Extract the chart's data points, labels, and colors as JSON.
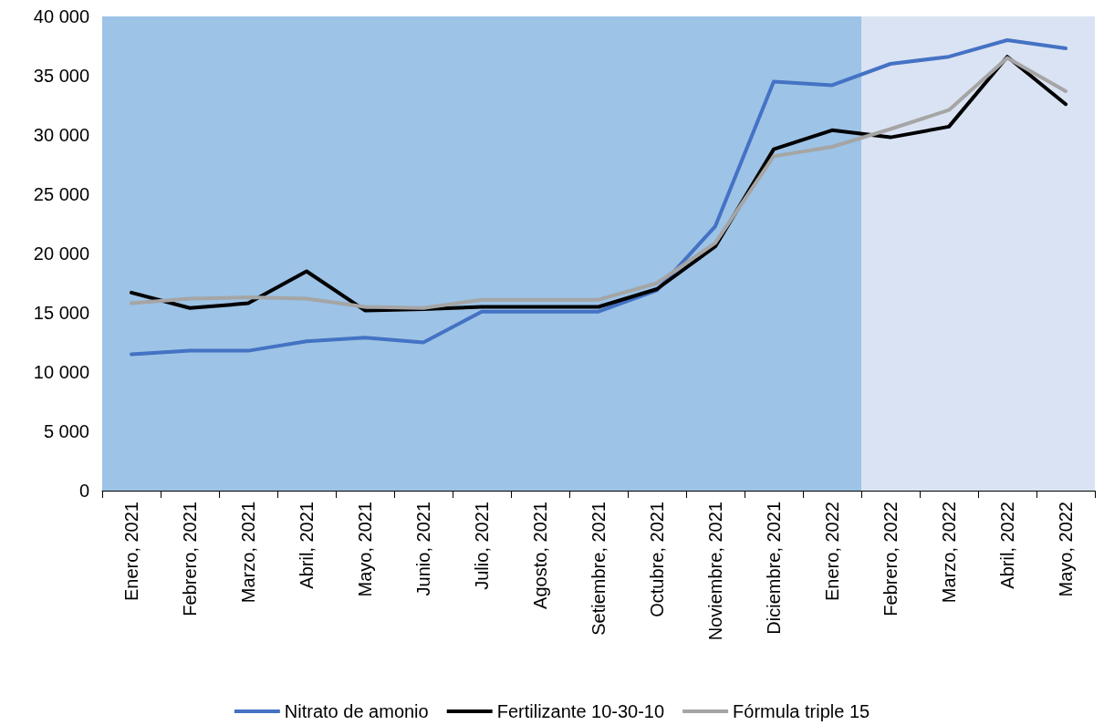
{
  "chart_data": {
    "type": "line",
    "categories": [
      "Enero, 2021",
      "Febrero, 2021",
      "Marzo, 2021",
      "Abril, 2021",
      "Mayo, 2021",
      "Junio, 2021",
      "Julio, 2021",
      "Agosto, 2021",
      "Setiembre, 2021",
      "Octubre, 2021",
      "Noviembre, 2021",
      "Diciembre, 2021",
      "Enero, 2022",
      "Febrero, 2022",
      "Marzo, 2022",
      "Abril, 2022",
      "Mayo, 2022"
    ],
    "series": [
      {
        "name": "Nitrato de amonio",
        "color": "#4472c4",
        "values": [
          11500,
          11800,
          11800,
          12600,
          12900,
          12500,
          15100,
          15100,
          15100,
          16900,
          22300,
          34500,
          34200,
          36000,
          36600,
          38000,
          37300
        ]
      },
      {
        "name": "Fertilizante 10-30-10",
        "color": "#000000",
        "values": [
          16700,
          15400,
          15800,
          18500,
          15200,
          15300,
          15500,
          15500,
          15500,
          17000,
          20600,
          28800,
          30400,
          29800,
          30700,
          36600,
          32600
        ]
      },
      {
        "name": "Fórmula triple 15",
        "color": "#a5a5a5",
        "values": [
          15800,
          16200,
          16300,
          16200,
          15500,
          15400,
          16100,
          16100,
          16100,
          17500,
          20900,
          28200,
          29000,
          30500,
          32100,
          36500,
          33700
        ]
      }
    ],
    "ylim": [
      0,
      40000
    ],
    "yticks": [
      {
        "value": 0,
        "label": "0"
      },
      {
        "value": 5000,
        "label": "5 000"
      },
      {
        "value": 10000,
        "label": "10 000"
      },
      {
        "value": 15000,
        "label": "15 000"
      },
      {
        "value": 20000,
        "label": "20 000"
      },
      {
        "value": 25000,
        "label": "25 000"
      },
      {
        "value": 30000,
        "label": "30 000"
      },
      {
        "value": 35000,
        "label": "35 000"
      },
      {
        "value": 40000,
        "label": "40 000"
      }
    ],
    "bands": [
      {
        "axis": "x",
        "from": "Enero, 2021",
        "to": "Enero, 2022",
        "color": "#9dc3e6"
      },
      {
        "axis": "x",
        "from": "Febrero, 2022",
        "to": "Mayo, 2022",
        "color": "#dae3f3"
      }
    ],
    "grid": false,
    "legend": "bottom",
    "marker": "none",
    "line_style": "solid"
  }
}
